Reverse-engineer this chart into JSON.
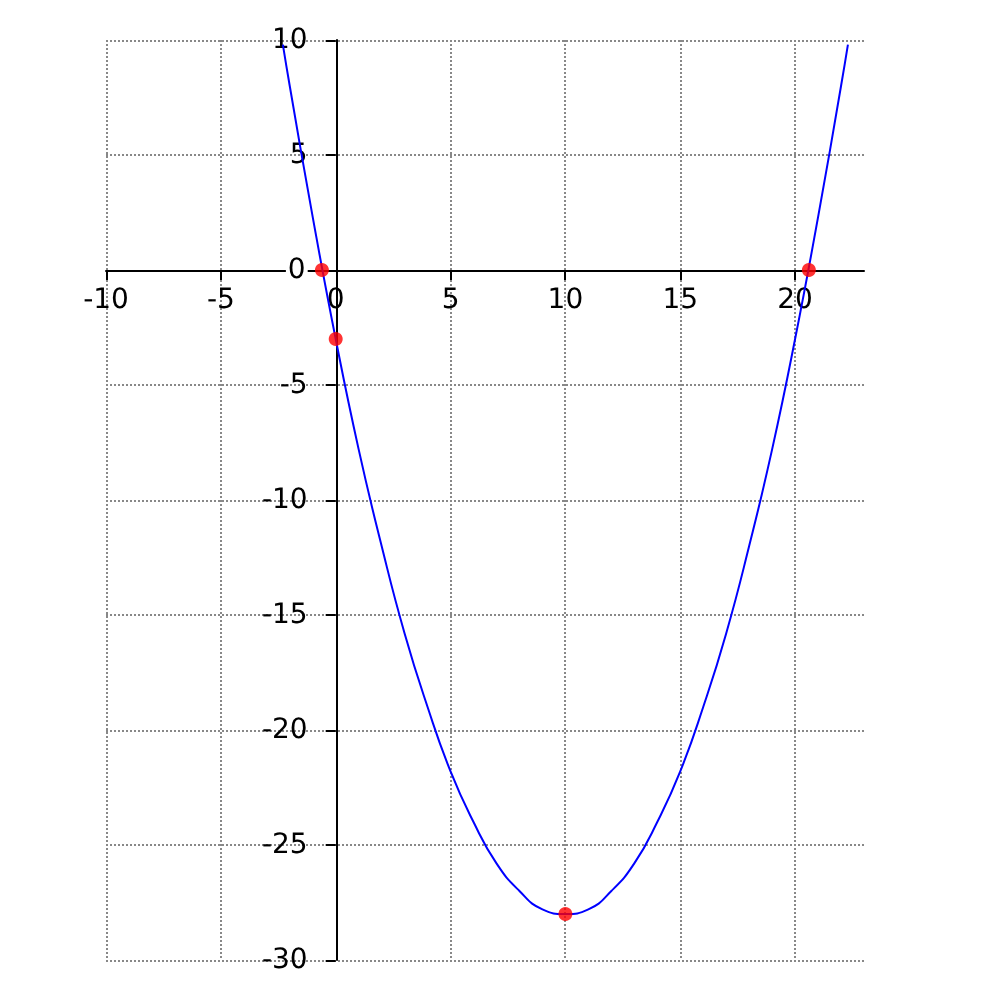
{
  "chart_data": {
    "type": "line",
    "xlim": [
      -10,
      23
    ],
    "ylim": [
      -30,
      10
    ],
    "xticks": [
      -10,
      -5,
      0,
      5,
      10,
      15,
      20
    ],
    "yticks": [
      -30,
      -25,
      -20,
      -15,
      -10,
      -5,
      0,
      5,
      10
    ],
    "grid": true,
    "legend": false,
    "series": [
      {
        "color": "#0000ff",
        "marker": "none",
        "line_style": "solid",
        "x": [
          -2.3,
          -2,
          -1,
          0,
          1,
          2,
          3,
          4,
          5,
          6,
          7,
          8,
          9,
          10,
          11,
          12,
          13,
          14,
          15,
          16,
          17,
          18,
          19,
          20,
          21,
          22,
          22.3
        ],
        "values": [
          9.8,
          8,
          2.3,
          -3,
          -7.8,
          -12,
          -15.8,
          -19,
          -21.8,
          -24,
          -25.8,
          -27,
          -27.8,
          -28,
          -27.8,
          -27,
          -25.8,
          -24,
          -21.8,
          -19,
          -15.8,
          -12,
          -7.8,
          -3,
          2.3,
          8,
          9.8
        ]
      },
      {
        "type": "scatter",
        "color": "#ff0000",
        "marker": "circle",
        "x": [
          -0.6,
          0,
          10,
          20.6
        ],
        "values": [
          0,
          -3,
          -28,
          0
        ]
      }
    ]
  }
}
